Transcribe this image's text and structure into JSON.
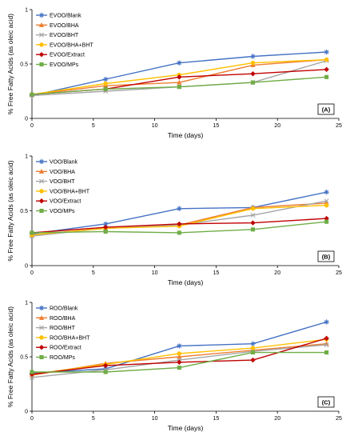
{
  "chart_data": [
    {
      "type": "line",
      "panel_label": "(A)",
      "xlabel": "Time (days)",
      "ylabel": "% Free Fatty Acids (as oleic acid)",
      "xlim": [
        0,
        25
      ],
      "ylim": [
        0,
        1
      ],
      "xticks": [
        "0",
        "5",
        "10",
        "15",
        "20",
        "25"
      ],
      "yticks": [
        "0",
        "0.5",
        "1"
      ],
      "grid": false,
      "legend_position": "top-left",
      "x": [
        0,
        6,
        12,
        18,
        24
      ],
      "series": [
        {
          "name": "EVOO/Blank",
          "color": "#4472C4",
          "marker": "star",
          "values": [
            0.21,
            0.36,
            0.51,
            0.57,
            0.61
          ]
        },
        {
          "name": "EVOO/BHA",
          "color": "#ED7D31",
          "marker": "triangle",
          "values": [
            0.22,
            0.3,
            0.33,
            0.49,
            0.54
          ]
        },
        {
          "name": "EVOO/BHT",
          "color": "#A5A5A5",
          "marker": "cross",
          "values": [
            0.21,
            0.25,
            0.29,
            0.33,
            0.53
          ]
        },
        {
          "name": "EVOO/BHA+BHT",
          "color": "#FFC000",
          "marker": "circle",
          "values": [
            0.22,
            0.32,
            0.4,
            0.51,
            0.54
          ]
        },
        {
          "name": "EVOO/Extract",
          "color": "#C00000",
          "marker": "diamond",
          "values": [
            0.22,
            0.27,
            0.38,
            0.41,
            0.45
          ]
        },
        {
          "name": "EVOO/MPs",
          "color": "#70AD47",
          "marker": "square",
          "values": [
            0.22,
            0.27,
            0.29,
            0.33,
            0.38
          ]
        }
      ]
    },
    {
      "type": "line",
      "panel_label": "(B)",
      "xlabel": "Time (days)",
      "ylabel": "% Free Fatty Acids (as oleic acid)",
      "xlim": [
        0,
        25
      ],
      "ylim": [
        0,
        1
      ],
      "xticks": [
        "0",
        "5",
        "10",
        "15",
        "20",
        "25"
      ],
      "yticks": [
        "0",
        "0.5",
        "1"
      ],
      "grid": false,
      "legend_position": "top-left",
      "x": [
        0,
        6,
        12,
        18,
        24
      ],
      "series": [
        {
          "name": "VOO/Blank",
          "color": "#4472C4",
          "marker": "star",
          "values": [
            0.29,
            0.38,
            0.52,
            0.53,
            0.67
          ]
        },
        {
          "name": "VOO/BHA",
          "color": "#ED7D31",
          "marker": "triangle",
          "values": [
            0.28,
            0.34,
            0.37,
            0.53,
            0.57
          ]
        },
        {
          "name": "VOO/BHT",
          "color": "#A5A5A5",
          "marker": "cross",
          "values": [
            0.27,
            0.34,
            0.37,
            0.46,
            0.59
          ]
        },
        {
          "name": "VOO/BHA+BHT",
          "color": "#FFC000",
          "marker": "circle",
          "values": [
            0.28,
            0.34,
            0.36,
            0.52,
            0.55
          ]
        },
        {
          "name": "VOO/Extract",
          "color": "#C00000",
          "marker": "diamond",
          "values": [
            0.3,
            0.35,
            0.38,
            0.39,
            0.43
          ]
        },
        {
          "name": "VOO/MPs",
          "color": "#70AD47",
          "marker": "square",
          "values": [
            0.3,
            0.31,
            0.3,
            0.33,
            0.4
          ]
        }
      ]
    },
    {
      "type": "line",
      "panel_label": "(C)",
      "xlabel": "Time (days)",
      "ylabel": "% Free Fatty Acids (as oleic acid)",
      "xlim": [
        0,
        25
      ],
      "ylim": [
        0,
        1
      ],
      "xticks": [
        "0",
        "5",
        "10",
        "15",
        "20",
        "25"
      ],
      "yticks": [
        "0",
        "0.5",
        "1"
      ],
      "grid": false,
      "legend_position": "top-left",
      "x": [
        0,
        6,
        12,
        18,
        24
      ],
      "series": [
        {
          "name": "ROO/Blank",
          "color": "#4472C4",
          "marker": "star",
          "values": [
            0.35,
            0.39,
            0.6,
            0.62,
            0.82
          ]
        },
        {
          "name": "ROO/BHA",
          "color": "#ED7D31",
          "marker": "triangle",
          "values": [
            0.33,
            0.44,
            0.5,
            0.56,
            0.62
          ]
        },
        {
          "name": "ROO/BHT",
          "color": "#A5A5A5",
          "marker": "cross",
          "values": [
            0.31,
            0.38,
            0.47,
            0.55,
            0.61
          ]
        },
        {
          "name": "ROO/BHA+BHT",
          "color": "#FFC000",
          "marker": "circle",
          "values": [
            0.34,
            0.43,
            0.53,
            0.58,
            0.66
          ]
        },
        {
          "name": "ROO/Extract",
          "color": "#C00000",
          "marker": "diamond",
          "values": [
            0.34,
            0.42,
            0.45,
            0.47,
            0.67
          ]
        },
        {
          "name": "ROO/MPs",
          "color": "#70AD47",
          "marker": "square",
          "values": [
            0.36,
            0.36,
            0.4,
            0.54,
            0.54
          ]
        }
      ]
    }
  ]
}
